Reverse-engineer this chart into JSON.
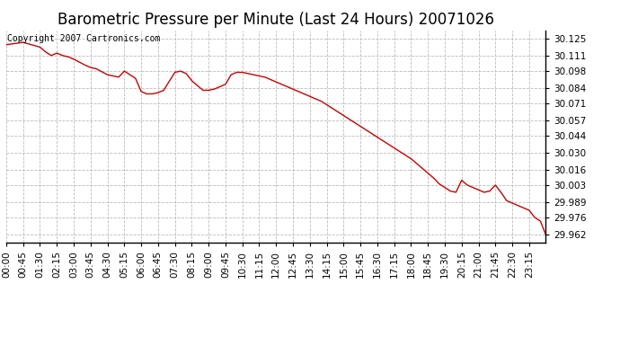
{
  "title": "Barometric Pressure per Minute (Last 24 Hours) 20071026",
  "copyright_text": "Copyright 2007 Cartronics.com",
  "line_color": "#cc0000",
  "background_color": "#ffffff",
  "grid_color": "#bbbbbb",
  "yticks": [
    29.962,
    29.976,
    29.989,
    30.003,
    30.016,
    30.03,
    30.044,
    30.057,
    30.071,
    30.084,
    30.098,
    30.111,
    30.125
  ],
  "ylim": [
    29.955,
    30.132
  ],
  "xlim": [
    0,
    1439
  ],
  "xtick_labels": [
    "00:00",
    "00:45",
    "01:30",
    "02:15",
    "03:00",
    "03:45",
    "04:30",
    "05:15",
    "06:00",
    "06:45",
    "07:30",
    "08:15",
    "09:00",
    "09:45",
    "10:30",
    "11:15",
    "12:00",
    "12:45",
    "13:30",
    "14:15",
    "15:00",
    "15:45",
    "16:30",
    "17:15",
    "18:00",
    "18:45",
    "19:30",
    "20:15",
    "21:00",
    "21:45",
    "22:30",
    "23:15"
  ],
  "title_fontsize": 12,
  "tick_fontsize": 7.5,
  "copyright_fontsize": 7,
  "pressure_data_x": [
    0,
    45,
    90,
    105,
    120,
    135,
    150,
    165,
    180,
    210,
    225,
    240,
    270,
    300,
    315,
    330,
    345,
    360,
    375,
    390,
    405,
    420,
    450,
    465,
    480,
    495,
    510,
    525,
    540,
    555,
    570,
    585,
    600,
    615,
    630,
    645,
    660,
    675,
    690,
    705,
    720,
    735,
    750,
    765,
    780,
    795,
    810,
    825,
    840,
    855,
    870,
    885,
    900,
    915,
    930,
    945,
    960,
    975,
    990,
    1005,
    1020,
    1035,
    1050,
    1065,
    1080,
    1095,
    1110,
    1125,
    1140,
    1155,
    1170,
    1185,
    1200,
    1215,
    1230,
    1245,
    1260,
    1275,
    1290,
    1305,
    1320,
    1335,
    1350,
    1365,
    1380,
    1395,
    1410,
    1425,
    1439
  ],
  "pressure_data_y": [
    30.12,
    30.122,
    30.118,
    30.114,
    30.111,
    30.113,
    30.111,
    30.11,
    30.108,
    30.103,
    30.101,
    30.1,
    30.095,
    30.093,
    30.098,
    30.095,
    30.092,
    30.081,
    30.079,
    30.079,
    30.08,
    30.082,
    30.097,
    30.098,
    30.096,
    30.09,
    30.086,
    30.082,
    30.082,
    30.083,
    30.085,
    30.087,
    30.095,
    30.097,
    30.097,
    30.096,
    30.095,
    30.094,
    30.093,
    30.091,
    30.089,
    30.087,
    30.085,
    30.083,
    30.081,
    30.079,
    30.077,
    30.075,
    30.073,
    30.07,
    30.067,
    30.064,
    30.061,
    30.058,
    30.055,
    30.052,
    30.049,
    30.046,
    30.043,
    30.04,
    30.037,
    30.034,
    30.031,
    30.028,
    30.025,
    30.021,
    30.017,
    30.013,
    30.009,
    30.004,
    30.001,
    29.998,
    29.997,
    30.007,
    30.003,
    30.001,
    29.999,
    29.997,
    29.998,
    30.003,
    29.997,
    29.99,
    29.988,
    29.986,
    29.984,
    29.982,
    29.976,
    29.973,
    29.962
  ]
}
